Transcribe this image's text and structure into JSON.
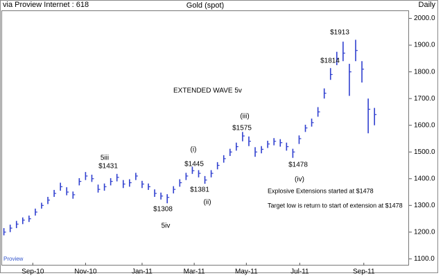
{
  "chart_data": {
    "type": "ohlc",
    "title": "Gold (spot)",
    "source": "via Proview Internet : 618",
    "period": "Daily",
    "footer": "Proview",
    "color": "#2f3fcf",
    "xlim": [
      -0.4,
      64.5
    ],
    "xticks": [
      {
        "value": 4.6,
        "label": "Sep-10"
      },
      {
        "value": 13.0,
        "label": "Nov-10"
      },
      {
        "value": 22.0,
        "label": "Jan-11"
      },
      {
        "value": 30.3,
        "label": "Mar-11"
      },
      {
        "value": 38.6,
        "label": "May-11"
      },
      {
        "value": 47.1,
        "label": "Jul-11"
      },
      {
        "value": 57.3,
        "label": "Sep-11"
      }
    ],
    "ylim": [
      1075,
      2030
    ],
    "yticks": [
      {
        "value": 1100,
        "label": "1100.0"
      },
      {
        "value": 1200,
        "label": "1200.0"
      },
      {
        "value": 1300,
        "label": "1300.0"
      },
      {
        "value": 1400,
        "label": "1400.0"
      },
      {
        "value": 1500,
        "label": "1500.0"
      },
      {
        "value": 1600,
        "label": "1600.0"
      },
      {
        "value": 1700,
        "label": "1700.0"
      },
      {
        "value": 1800,
        "label": "1800.0"
      },
      {
        "value": 1900,
        "label": "1900.0"
      },
      {
        "value": 2000,
        "label": "2000.0"
      }
    ],
    "high": [
      1215,
      1228,
      1242,
      1255,
      1262,
      1288,
      1310,
      1332,
      1358,
      1385,
      1368,
      1352,
      1402,
      1425,
      1415,
      1378,
      1382,
      1402,
      1418,
      1395,
      1398,
      1422,
      1392,
      1382,
      1360,
      1348,
      1342,
      1372,
      1398,
      1422,
      1445,
      1432,
      1410,
      1432,
      1462,
      1488,
      1512,
      1535,
      1575,
      1558,
      1518,
      1522,
      1542,
      1552,
      1548,
      1535,
      1512,
      1562,
      1602,
      1625,
      1668,
      1738,
      1814,
      1875,
      1913,
      1830,
      1920,
      1840,
      1700,
      1665
    ],
    "low": [
      1188,
      1200,
      1215,
      1230,
      1238,
      1262,
      1288,
      1305,
      1332,
      1355,
      1338,
      1325,
      1375,
      1395,
      1388,
      1348,
      1355,
      1375,
      1390,
      1365,
      1370,
      1395,
      1365,
      1358,
      1332,
      1322,
      1308,
      1345,
      1370,
      1395,
      1418,
      1405,
      1381,
      1405,
      1435,
      1460,
      1485,
      1505,
      1540,
      1522,
      1482,
      1495,
      1515,
      1525,
      1520,
      1505,
      1478,
      1530,
      1575,
      1595,
      1632,
      1700,
      1770,
      1825,
      1840,
      1710,
      1840,
      1760,
      1570,
      1600
    ],
    "close": [
      1200,
      1215,
      1230,
      1245,
      1250,
      1275,
      1300,
      1320,
      1345,
      1370,
      1350,
      1340,
      1390,
      1410,
      1400,
      1360,
      1370,
      1390,
      1405,
      1380,
      1385,
      1410,
      1380,
      1370,
      1345,
      1335,
      1330,
      1360,
      1385,
      1410,
      1430,
      1420,
      1395,
      1420,
      1450,
      1475,
      1500,
      1520,
      1560,
      1540,
      1500,
      1510,
      1530,
      1540,
      1535,
      1520,
      1500,
      1550,
      1590,
      1610,
      1650,
      1720,
      1790,
      1850,
      1870,
      1800,
      1880,
      1810,
      1660,
      1640
    ],
    "annotations": [
      "EXTENDED WAVE  5v",
      "5iii",
      "$1431",
      "(i)",
      "$1445",
      "$1381",
      "(ii)",
      "$1308",
      "5iv",
      "(iii)",
      "$1575",
      "$1478",
      "(iv)",
      "$1814",
      "$1913",
      "Explosive Extensions started at $1478",
      "Target low is return to start of extension at $1478"
    ]
  }
}
